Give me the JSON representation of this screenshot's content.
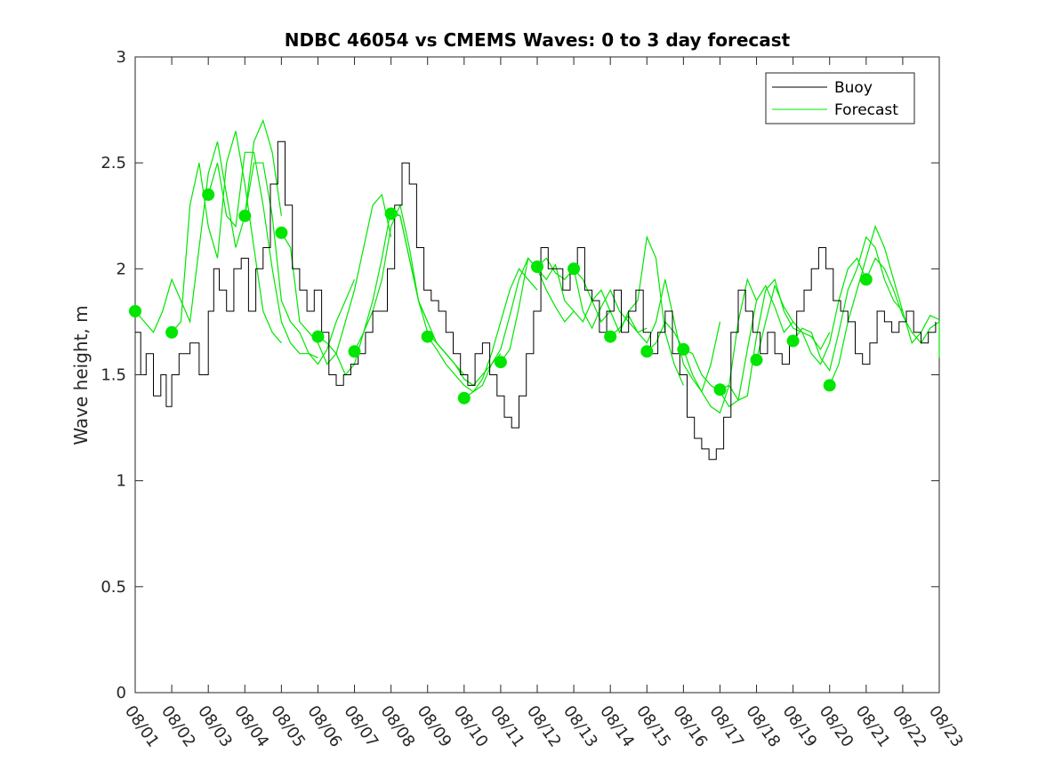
{
  "chart_data": {
    "type": "line",
    "title": "NDBC 46054 vs CMEMS Waves: 0 to 3 day forecast",
    "xlabel": "",
    "ylabel": "Wave height, m",
    "xlim": [
      0,
      22
    ],
    "ylim": [
      0,
      3
    ],
    "y_ticks": [
      0,
      0.5,
      1,
      1.5,
      2,
      2.5,
      3
    ],
    "y_tick_labels": [
      "0",
      "0.5",
      "1",
      "1.5",
      "2",
      "2.5",
      "3"
    ],
    "x_ticks": [
      0,
      1,
      2,
      3,
      4,
      5,
      6,
      7,
      8,
      9,
      10,
      11,
      12,
      13,
      14,
      15,
      16,
      17,
      18,
      19,
      20,
      21,
      22
    ],
    "x_tick_labels": [
      "08/01",
      "08/02",
      "08/03",
      "08/04",
      "08/05",
      "08/06",
      "08/07",
      "08/08",
      "08/09",
      "08/10",
      "08/11",
      "08/12",
      "08/13",
      "08/14",
      "08/15",
      "08/16",
      "08/17",
      "08/18",
      "08/19",
      "08/20",
      "08/21",
      "08/22",
      "08/23"
    ],
    "grid": false,
    "legend": {
      "position": "top-right",
      "entries": [
        "Buoy",
        "Forecast"
      ]
    },
    "colors": {
      "buoy": "#000000",
      "forecast": "#00e600",
      "axes": "#262626"
    },
    "buoy": {
      "name": "Buoy",
      "x": [
        0,
        0.15,
        0.3,
        0.5,
        0.7,
        0.85,
        1.0,
        1.2,
        1.5,
        1.75,
        2.0,
        2.15,
        2.3,
        2.5,
        2.7,
        2.9,
        3.1,
        3.3,
        3.5,
        3.7,
        3.9,
        4.1,
        4.3,
        4.5,
        4.7,
        4.9,
        5.1,
        5.3,
        5.5,
        5.7,
        5.9,
        6.1,
        6.3,
        6.5,
        6.7,
        6.9,
        7.1,
        7.3,
        7.5,
        7.7,
        7.9,
        8.1,
        8.3,
        8.5,
        8.7,
        8.9,
        9.1,
        9.3,
        9.5,
        9.7,
        9.9,
        10.1,
        10.3,
        10.5,
        10.7,
        10.9,
        11.1,
        11.3,
        11.5,
        11.7,
        11.9,
        12.1,
        12.3,
        12.5,
        12.7,
        12.9,
        13.1,
        13.3,
        13.5,
        13.7,
        13.9,
        14.1,
        14.3,
        14.5,
        14.7,
        14.9,
        15.1,
        15.3,
        15.5,
        15.7,
        15.9,
        16.1,
        16.3,
        16.5,
        16.7,
        16.9,
        17.1,
        17.3,
        17.5,
        17.7,
        17.9,
        18.1,
        18.3,
        18.5,
        18.7,
        18.9,
        19.1,
        19.3,
        19.5,
        19.7,
        19.9,
        20.1,
        20.3,
        20.5,
        20.7,
        20.9,
        21.1,
        21.3,
        21.5,
        21.7,
        21.9
      ],
      "values": [
        1.7,
        1.5,
        1.6,
        1.4,
        1.5,
        1.35,
        1.5,
        1.6,
        1.65,
        1.5,
        1.8,
        2.0,
        1.9,
        1.8,
        2.0,
        2.05,
        1.8,
        2.0,
        2.1,
        2.4,
        2.6,
        2.3,
        2.0,
        1.9,
        1.8,
        1.9,
        1.7,
        1.5,
        1.45,
        1.5,
        1.55,
        1.6,
        1.7,
        1.8,
        1.8,
        2.0,
        2.3,
        2.5,
        2.4,
        2.1,
        1.9,
        1.85,
        1.8,
        1.7,
        1.6,
        1.5,
        1.45,
        1.6,
        1.65,
        1.5,
        1.4,
        1.3,
        1.25,
        1.4,
        1.6,
        1.8,
        2.1,
        2.0,
        2.0,
        1.9,
        2.0,
        2.1,
        1.9,
        1.85,
        1.7,
        1.8,
        1.9,
        1.7,
        1.8,
        1.9,
        1.7,
        1.6,
        1.7,
        1.8,
        1.6,
        1.5,
        1.3,
        1.2,
        1.15,
        1.1,
        1.15,
        1.3,
        1.7,
        1.9,
        1.8,
        1.7,
        1.6,
        1.7,
        1.6,
        1.55,
        1.65,
        1.8,
        1.9,
        2.0,
        2.1,
        2.0,
        1.85,
        1.8,
        1.75,
        1.6,
        1.55,
        1.65,
        1.8,
        1.75,
        1.7,
        1.75,
        1.8,
        1.7,
        1.65,
        1.7,
        1.75
      ]
    },
    "forecast": {
      "name": "Forecast",
      "runs": [
        {
          "start": 0.0,
          "values": [
            1.8,
            1.75,
            1.7,
            1.8,
            1.95,
            1.85,
            1.75,
            2.1,
            2.45,
            2.6,
            2.35,
            2.1,
            2.25,
            2.6,
            2.7,
            2.55,
            2.25
          ]
        },
        {
          "start": 1.0,
          "values": [
            1.7,
            1.75,
            2.3,
            2.5,
            2.2,
            2.05,
            2.5,
            2.65,
            2.4,
            2.1,
            1.8,
            1.7,
            1.65
          ]
        },
        {
          "start": 2.0,
          "values": [
            2.35,
            2.5,
            2.25,
            2.2,
            2.55,
            2.55,
            2.3,
            2.0,
            1.75,
            1.65,
            1.6,
            1.6,
            1.58
          ]
        },
        {
          "start": 3.0,
          "values": [
            2.25,
            2.5,
            2.5,
            2.25,
            1.85,
            1.75,
            1.7,
            1.6,
            1.55,
            1.62,
            1.75,
            1.85,
            1.95
          ]
        },
        {
          "start": 4.0,
          "values": [
            2.17,
            2.1,
            1.75,
            1.7,
            1.65,
            1.55,
            1.6,
            1.75,
            1.9,
            2.1,
            2.3,
            2.35,
            2.15
          ]
        },
        {
          "start": 5.0,
          "values": [
            1.68,
            1.65,
            1.6,
            1.5,
            1.55,
            1.7,
            1.85,
            2.05,
            2.28,
            2.25,
            2.05,
            1.85,
            1.75
          ]
        },
        {
          "start": 6.0,
          "values": [
            1.61,
            1.7,
            1.8,
            1.95,
            2.2,
            2.3,
            2.1,
            1.85,
            1.7,
            1.65,
            1.6,
            1.55,
            1.5
          ]
        },
        {
          "start": 7.0,
          "values": [
            2.26,
            2.25,
            2.05,
            1.85,
            1.75,
            1.65,
            1.6,
            1.55,
            1.48,
            1.45,
            1.5,
            1.55,
            1.6
          ]
        },
        {
          "start": 8.0,
          "values": [
            1.68,
            1.62,
            1.55,
            1.5,
            1.45,
            1.42,
            1.48,
            1.6,
            1.75,
            1.9,
            2.0,
            1.95,
            1.9
          ]
        },
        {
          "start": 9.0,
          "values": [
            1.39,
            1.42,
            1.45,
            1.55,
            1.62,
            1.78,
            1.95,
            2.05,
            2.0,
            1.9,
            1.82,
            1.75,
            1.8
          ]
        },
        {
          "start": 10.0,
          "values": [
            1.56,
            1.62,
            1.82,
            2.05,
            2.0,
            1.95,
            2.02,
            1.85,
            1.8,
            1.75,
            1.85,
            1.9,
            1.8
          ]
        },
        {
          "start": 11.0,
          "values": [
            2.01,
            2.05,
            1.98,
            1.95,
            2.0,
            1.8,
            1.72,
            1.82,
            1.9,
            1.8,
            1.75,
            1.7,
            1.72
          ]
        },
        {
          "start": 12.0,
          "values": [
            2.0,
            1.95,
            1.85,
            1.75,
            1.8,
            1.7,
            1.8,
            1.85,
            2.15,
            2.05,
            1.7,
            1.55,
            1.45
          ]
        },
        {
          "start": 13.0,
          "values": [
            1.68,
            1.72,
            1.78,
            1.7,
            1.65,
            1.75,
            1.95,
            1.75,
            1.55,
            1.48,
            1.42,
            1.55,
            1.75
          ]
        },
        {
          "start": 14.0,
          "values": [
            1.61,
            1.65,
            1.75,
            1.7,
            1.62,
            1.5,
            1.42,
            1.35,
            1.32,
            1.45,
            1.75,
            1.95,
            1.85
          ]
        },
        {
          "start": 15.0,
          "values": [
            1.62,
            1.6,
            1.5,
            1.45,
            1.42,
            1.35,
            1.38,
            1.62,
            1.85,
            1.92,
            1.82,
            1.7,
            1.75
          ]
        },
        {
          "start": 16.0,
          "values": [
            1.43,
            1.45,
            1.38,
            1.4,
            1.68,
            1.9,
            1.95,
            1.8,
            1.72,
            1.7,
            1.68,
            1.62,
            1.7
          ]
        },
        {
          "start": 17.0,
          "values": [
            1.57,
            1.75,
            1.92,
            1.82,
            1.75,
            1.7,
            1.6,
            1.55,
            1.65,
            1.85,
            2.0,
            2.05,
            1.95
          ]
        },
        {
          "start": 18.0,
          "values": [
            1.66,
            1.72,
            1.7,
            1.58,
            1.52,
            1.7,
            1.9,
            2.0,
            2.15,
            2.1,
            1.95,
            1.85,
            1.8
          ]
        },
        {
          "start": 19.0,
          "values": [
            1.45,
            1.55,
            1.75,
            1.9,
            2.05,
            2.2,
            2.1,
            1.95,
            1.8,
            1.65,
            1.7,
            1.78,
            1.76
          ]
        },
        {
          "start": 20.0,
          "values": [
            1.95,
            2.05,
            2.0,
            1.9,
            1.78,
            1.7,
            1.65,
            1.72,
            1.75,
            1.75,
            1.7,
            1.65,
            1.58
          ]
        }
      ]
    }
  }
}
